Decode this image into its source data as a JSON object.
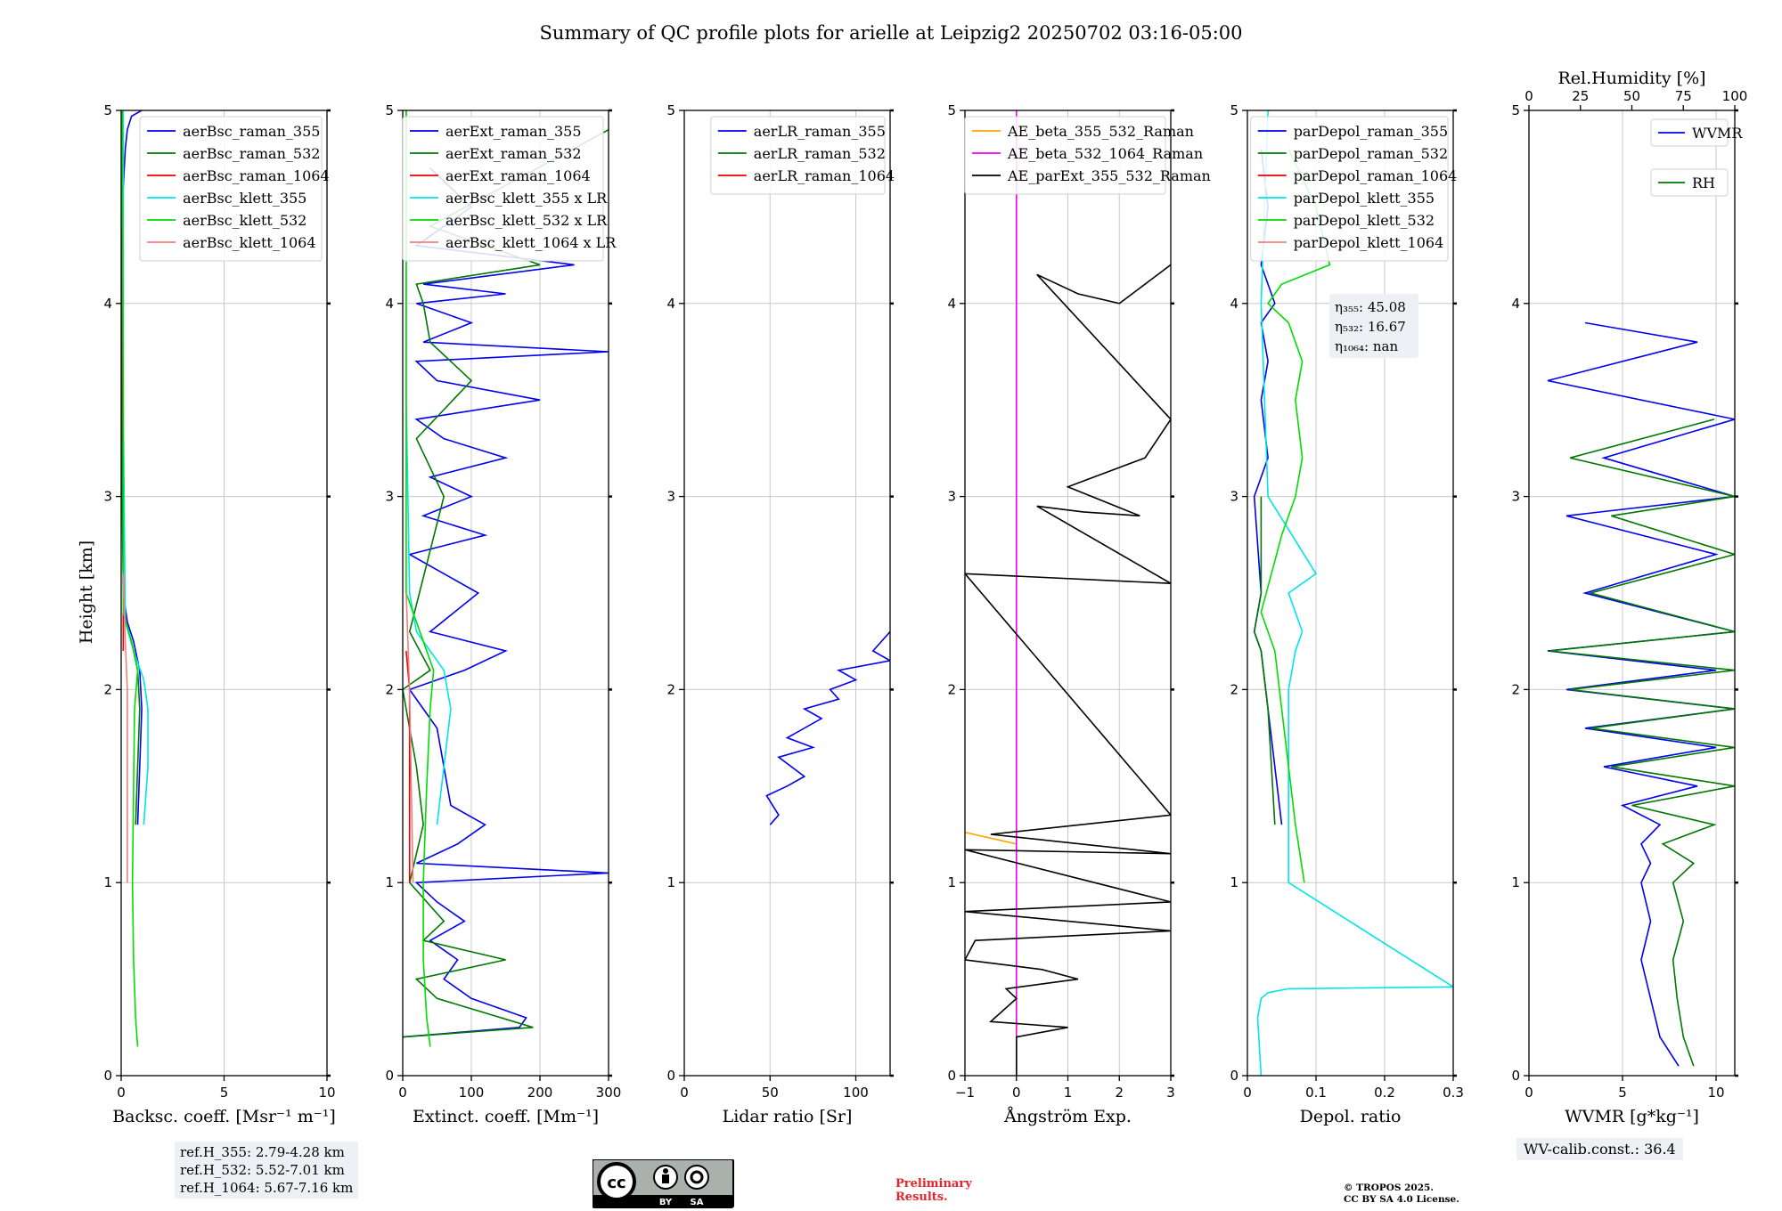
{
  "title": "Summary of QC profile plots for arielle at Leipzig2 20250702 03:16-05:00",
  "ylabel": "Height [km]",
  "ref_heights": [
    "ref.H_355: 2.79-4.28 km",
    "ref.H_532: 5.52-7.01 km",
    "ref.H_1064: 5.67-7.16 km"
  ],
  "wv_calib": "WV-calib.const.: 36.4",
  "preliminary": [
    "Preliminary",
    "Results."
  ],
  "copyright": [
    "© TROPOS 2025.",
    "CC BY SA 4.0 License."
  ],
  "cc_badge": {
    "by": "BY",
    "sa": "SA"
  },
  "colors": {
    "blue": "#0000ee",
    "green": "#007700",
    "red": "#ee0000",
    "cyan": "#00e5e5",
    "lime": "#00dd00",
    "pink": "#f08080",
    "orange": "#ffa500",
    "magenta": "#ee00ee",
    "black": "#000000",
    "grid": "#c8c8c8"
  },
  "chart_data": [
    {
      "type": "line",
      "id": "bsc",
      "xlabel": "Backsc. coeff. [Msr⁻¹ m⁻¹]",
      "xlim": [
        0,
        10
      ],
      "ylim": [
        0,
        5
      ],
      "xticks": [
        0,
        5,
        10
      ],
      "yticks": [
        0,
        1,
        2,
        3,
        4,
        5
      ],
      "legend": "top-right",
      "series": [
        {
          "name": "aerBsc_raman_355",
          "color": "blue",
          "x": [
            0.8,
            0.9,
            1.0,
            0.9,
            0.6,
            0.3,
            0.1,
            0.1,
            0.05,
            0.1,
            0.05,
            0.1,
            0.2,
            0.3,
            0.5,
            1.0
          ],
          "y": [
            1.3,
            1.6,
            1.9,
            2.1,
            2.25,
            2.35,
            2.5,
            3.0,
            3.5,
            4.0,
            4.3,
            4.6,
            4.8,
            4.9,
            4.97,
            5.0
          ]
        },
        {
          "name": "aerBsc_raman_532",
          "color": "green",
          "x": [
            0.7,
            0.8,
            0.9,
            0.8,
            0.5,
            0.2,
            0.1,
            0.05,
            0.05,
            0.05,
            0.05
          ],
          "y": [
            1.3,
            1.6,
            1.9,
            2.1,
            2.25,
            2.35,
            2.5,
            3.0,
            3.5,
            4.0,
            5.0
          ]
        },
        {
          "name": "aerBsc_raman_1064",
          "color": "red",
          "x": [
            0.1,
            0.1,
            0.05
          ],
          "y": [
            2.2,
            3.0,
            4.4
          ]
        },
        {
          "name": "aerBsc_klett_355",
          "color": "cyan",
          "x": [
            1.1,
            1.3,
            1.3,
            1.1,
            0.6,
            0.2,
            0.15,
            0.1,
            0.1
          ],
          "y": [
            1.3,
            1.6,
            1.9,
            2.05,
            2.2,
            2.35,
            2.9,
            3.5,
            5.0
          ]
        },
        {
          "name": "aerBsc_klett_532",
          "color": "lime",
          "x": [
            0.8,
            0.7,
            0.6,
            0.55,
            0.6,
            0.65,
            0.8,
            0.5,
            0.1,
            0.1,
            0.05
          ],
          "y": [
            0.15,
            0.3,
            0.6,
            1.0,
            1.5,
            1.9,
            2.1,
            2.25,
            2.4,
            3.5,
            5.0
          ]
        },
        {
          "name": "aerBsc_klett_1064",
          "color": "pink",
          "x": [
            0.3,
            0.3,
            0.3,
            0.2,
            0.1
          ],
          "y": [
            1.0,
            1.6,
            2.0,
            2.25,
            2.6
          ]
        }
      ]
    },
    {
      "type": "line",
      "id": "ext",
      "xlabel": "Extinct. coeff. [Mm⁻¹]",
      "xlim": [
        0,
        300
      ],
      "ylim": [
        0,
        5
      ],
      "xticks": [
        0,
        100,
        200,
        300
      ],
      "yticks": [
        0,
        1,
        2,
        3,
        4,
        5
      ],
      "legend": "top-right",
      "series": [
        {
          "name": "aerExt_raman_355",
          "color": "blue",
          "x": [
            0,
            170,
            180,
            100,
            60,
            80,
            40,
            90,
            50,
            20,
            300,
            20,
            80,
            120,
            70,
            60,
            50,
            30,
            10,
            90,
            150,
            40,
            110,
            60,
            10,
            120,
            30,
            100,
            40,
            150,
            60,
            20,
            200,
            50,
            20,
            300,
            30,
            100,
            20,
            150,
            30,
            250,
            20,
            100,
            40
          ],
          "y": [
            0.2,
            0.25,
            0.3,
            0.4,
            0.5,
            0.6,
            0.7,
            0.8,
            0.9,
            1.0,
            1.05,
            1.1,
            1.2,
            1.3,
            1.4,
            1.6,
            1.8,
            1.9,
            2.0,
            2.1,
            2.2,
            2.3,
            2.5,
            2.6,
            2.7,
            2.8,
            2.9,
            3.0,
            3.1,
            3.2,
            3.3,
            3.4,
            3.5,
            3.6,
            3.7,
            3.75,
            3.8,
            3.9,
            4.0,
            4.05,
            4.1,
            4.2,
            4.3,
            4.5,
            4.7
          ]
        },
        {
          "name": "aerExt_raman_532",
          "color": "green",
          "x": [
            0,
            190,
            50,
            20,
            150,
            30,
            60,
            10,
            30,
            20,
            0,
            40,
            10,
            60,
            20,
            100,
            40,
            30,
            20,
            200,
            40,
            300
          ],
          "y": [
            0.2,
            0.25,
            0.4,
            0.5,
            0.6,
            0.7,
            0.8,
            1.0,
            1.3,
            1.6,
            2.0,
            2.1,
            2.3,
            3.0,
            3.3,
            3.6,
            3.8,
            4.0,
            4.1,
            4.2,
            4.4,
            4.9
          ]
        },
        {
          "name": "aerExt_raman_1064",
          "color": "red",
          "x": [
            10,
            10,
            5
          ],
          "y": [
            1.0,
            2.0,
            2.2
          ]
        },
        {
          "name": "aerBsc_klett_355 x LR",
          "color": "cyan",
          "x": [
            50,
            60,
            70,
            60,
            20,
            10,
            5,
            5
          ],
          "y": [
            1.3,
            1.6,
            1.9,
            2.1,
            2.3,
            2.5,
            3.5,
            5.0
          ]
        },
        {
          "name": "aerBsc_klett_532 x LR",
          "color": "lime",
          "x": [
            40,
            35,
            30,
            30,
            35,
            40,
            45,
            30,
            5,
            5
          ],
          "y": [
            0.15,
            0.3,
            0.6,
            1.0,
            1.5,
            1.9,
            2.1,
            2.25,
            2.5,
            5.0
          ]
        },
        {
          "name": "aerBsc_klett_1064 x LR",
          "color": "pink",
          "x": [
            15,
            12,
            10,
            5
          ],
          "y": [
            1.0,
            1.6,
            2.0,
            2.5
          ]
        }
      ]
    },
    {
      "type": "line",
      "id": "lr",
      "xlabel": "Lidar ratio [Sr]",
      "xlim": [
        0,
        120
      ],
      "ylim": [
        0,
        5
      ],
      "xticks": [
        0,
        50,
        100
      ],
      "yticks": [
        0,
        1,
        2,
        3,
        4,
        5
      ],
      "legend": "top-right",
      "series": [
        {
          "name": "aerLR_raman_355",
          "color": "blue",
          "x": [
            50,
            55,
            48,
            60,
            70,
            55,
            75,
            60,
            80,
            70,
            90,
            85,
            100,
            90,
            120,
            110,
            120
          ],
          "y": [
            1.3,
            1.35,
            1.45,
            1.5,
            1.55,
            1.65,
            1.7,
            1.75,
            1.85,
            1.9,
            1.95,
            2.0,
            2.05,
            2.1,
            2.15,
            2.2,
            2.3
          ]
        },
        {
          "name": "aerLR_raman_532",
          "color": "green",
          "x": [],
          "y": []
        },
        {
          "name": "aerLR_raman_1064",
          "color": "red",
          "x": [],
          "y": []
        }
      ]
    },
    {
      "type": "line",
      "id": "ae",
      "xlabel": "Ångström Exp.",
      "xlim": [
        -1,
        3
      ],
      "ylim": [
        0,
        5
      ],
      "xticks": [
        -1,
        0,
        1,
        2,
        3
      ],
      "yticks": [
        0,
        1,
        2,
        3,
        4,
        5
      ],
      "legend": "top-right",
      "series": [
        {
          "name": "AE_beta_355_532_Raman",
          "color": "orange",
          "x": [
            -1,
            0
          ],
          "y": [
            1.26,
            1.2
          ]
        },
        {
          "name": "AE_beta_532_1064_Raman",
          "color": "magenta",
          "x": [
            0,
            0
          ],
          "y": [
            0,
            5
          ]
        },
        {
          "name": "AE_parExt_355_532_Raman",
          "color": "black",
          "x": [
            0,
            0,
            1.0,
            -0.5,
            0,
            -0.2,
            1.2,
            0.5,
            -1,
            -0.8,
            3,
            -1,
            3,
            -1,
            3,
            -0.5,
            3,
            -1,
            3,
            0.4,
            1.3,
            2.4,
            1.0,
            1.5,
            2.5,
            3,
            0.4,
            1.2,
            2.0,
            3
          ],
          "y": [
            0,
            0.2,
            0.25,
            0.28,
            0.4,
            0.45,
            0.5,
            0.55,
            0.6,
            0.7,
            0.75,
            0.85,
            0.9,
            1.17,
            1.15,
            1.25,
            1.35,
            2.6,
            2.55,
            2.95,
            2.92,
            2.9,
            3.05,
            3.1,
            3.2,
            3.4,
            4.15,
            4.05,
            4.0,
            4.2
          ]
        }
      ]
    },
    {
      "type": "line",
      "id": "depol",
      "xlabel": "Depol. ratio",
      "xlim": [
        0,
        0.3
      ],
      "ylim": [
        0,
        5
      ],
      "xticks": [
        0.0,
        0.1,
        0.2,
        0.3
      ],
      "yticks": [
        0,
        1,
        2,
        3,
        4,
        5
      ],
      "legend": "top-right",
      "annotation": [
        "η₃₅₅: 45.08",
        "η₅₃₂: 16.67",
        "η₁₀₆₄: nan"
      ],
      "series": [
        {
          "name": "parDepol_raman_355",
          "color": "blue",
          "x": [
            0.05,
            0.04,
            0.03,
            0.02,
            0.01,
            0.02,
            0.01,
            0.03,
            0.02,
            0.03,
            0.02,
            0.04,
            0.03,
            0.02,
            0.03,
            0.02
          ],
          "y": [
            1.3,
            1.6,
            1.9,
            2.2,
            2.3,
            2.5,
            3.0,
            3.2,
            3.5,
            3.7,
            3.9,
            4.0,
            4.1,
            4.2,
            4.5,
            4.8
          ]
        },
        {
          "name": "parDepol_raman_532",
          "color": "green",
          "x": [
            0.04,
            0.035,
            0.03,
            0.02,
            0.01,
            0.02,
            0.02
          ],
          "y": [
            1.3,
            1.6,
            1.9,
            2.2,
            2.3,
            2.5,
            3.0
          ]
        },
        {
          "name": "parDepol_raman_1064",
          "color": "red",
          "x": [],
          "y": []
        },
        {
          "name": "parDepol_klett_355",
          "color": "cyan",
          "x": [
            0.02,
            0.015,
            0.02,
            0.03,
            0.06,
            0.3,
            0.06,
            0.06,
            0.06,
            0.07,
            0.08,
            0.06,
            0.1,
            0.03,
            0.02,
            0.03
          ],
          "y": [
            0.0,
            0.3,
            0.4,
            0.43,
            0.45,
            0.46,
            1.0,
            1.5,
            2.0,
            2.2,
            2.3,
            2.5,
            2.6,
            3.0,
            4.0,
            5.0
          ]
        },
        {
          "name": "parDepol_klett_532",
          "color": "lime",
          "x": [
            0.083,
            0.07,
            0.06,
            0.05,
            0.04,
            0.03,
            0.02,
            0.05,
            0.07,
            0.08,
            0.07,
            0.08,
            0.06,
            0.03,
            0.05,
            0.12,
            0.1,
            0.06
          ],
          "y": [
            1.0,
            1.3,
            1.6,
            1.9,
            2.2,
            2.3,
            2.4,
            2.8,
            3.0,
            3.2,
            3.5,
            3.7,
            3.9,
            4.0,
            4.1,
            4.2,
            4.5,
            4.8
          ]
        },
        {
          "name": "parDepol_klett_1064",
          "color": "pink",
          "x": [],
          "y": []
        }
      ]
    },
    {
      "type": "line",
      "id": "wv",
      "xlabel": "WVMR [g*kg⁻¹]",
      "top_xlabel": "Rel.Humidity [%]",
      "xlim": [
        0,
        11
      ],
      "ylim": [
        0,
        5
      ],
      "top_xlim": [
        0,
        100
      ],
      "xticks": [
        0,
        5,
        10
      ],
      "top_xticks": [
        0,
        25,
        50,
        75,
        100
      ],
      "yticks": [
        0,
        1,
        2,
        3,
        4,
        5
      ],
      "legend": "top-right",
      "series": [
        {
          "name": "WVMR",
          "color": "blue",
          "x": [
            8,
            7,
            6.5,
            6,
            6.5,
            6,
            6.5,
            6,
            7,
            5,
            9,
            4,
            10,
            3,
            11,
            2,
            10,
            1,
            11,
            3,
            10,
            2,
            11,
            4,
            11,
            1,
            9,
            3
          ],
          "y": [
            0.05,
            0.2,
            0.4,
            0.6,
            0.8,
            1.0,
            1.1,
            1.2,
            1.3,
            1.4,
            1.5,
            1.6,
            1.7,
            1.8,
            1.9,
            2.0,
            2.1,
            2.2,
            2.3,
            2.5,
            2.7,
            2.9,
            3.0,
            3.2,
            3.4,
            3.6,
            3.8,
            3.9
          ]
        },
        {
          "name": "RH",
          "color": "green",
          "top_axis": true,
          "x": [
            80,
            75,
            72,
            70,
            75,
            70,
            80,
            65,
            90,
            50,
            100,
            40,
            100,
            30,
            100,
            20,
            100,
            10,
            100,
            30,
            100,
            40,
            100,
            20,
            90
          ],
          "y": [
            0.05,
            0.2,
            0.4,
            0.6,
            0.8,
            1.0,
            1.1,
            1.2,
            1.3,
            1.4,
            1.5,
            1.6,
            1.7,
            1.8,
            1.9,
            2.0,
            2.1,
            2.2,
            2.3,
            2.5,
            2.7,
            2.9,
            3.0,
            3.2,
            3.4
          ]
        }
      ]
    }
  ]
}
